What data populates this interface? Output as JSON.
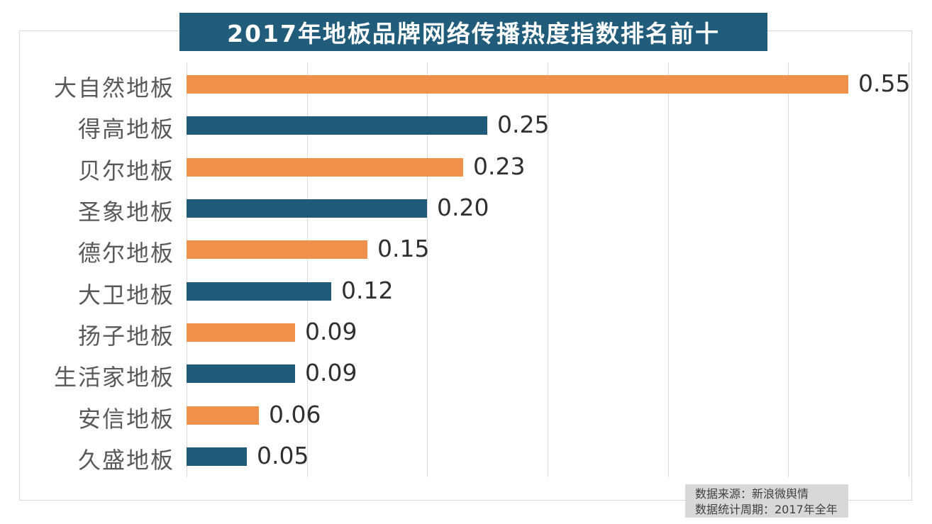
{
  "colors": {
    "background": "#FFFFFF",
    "banner_bg": "#215C7B",
    "banner_text": "#FFFFFF",
    "bar_orange": "#F0914B",
    "bar_blue": "#1F5B79",
    "grid_line": "#D9D9D9",
    "frame_border": "#D9D9D9",
    "category_label": "#595959",
    "value_label": "#303030",
    "note_bg": "#D8D8D8",
    "note_text": "#3F3F3F"
  },
  "source_note": {
    "line1": "数据来源：新浪微舆情",
    "line2": "数据统计周期：2017年全年"
  },
  "chart_data": {
    "type": "bar",
    "orientation": "horizontal",
    "title": "2017年地板品牌网络传播热度指数排名前十",
    "categories": [
      "大自然地板",
      "得高地板",
      "贝尔地板",
      "圣象地板",
      "德尔地板",
      "大卫地板",
      "扬子地板",
      "生活家地板",
      "安信地板",
      "久盛地板"
    ],
    "values": [
      0.55,
      0.25,
      0.23,
      0.2,
      0.15,
      0.12,
      0.09,
      0.09,
      0.06,
      0.05
    ],
    "value_labels": [
      "0.55",
      "0.25",
      "0.23",
      "0.20",
      "0.15",
      "0.12",
      "0.09",
      "0.09",
      "0.06",
      "0.05"
    ],
    "bar_colors": [
      "#F0914B",
      "#1F5B79",
      "#F0914B",
      "#1F5B79",
      "#F0914B",
      "#1F5B79",
      "#F0914B",
      "#1F5B79",
      "#F0914B",
      "#1F5B79"
    ],
    "xlim": [
      0,
      0.6
    ],
    "x_gridline_interval": 0.1,
    "gridlines": "vertical",
    "legend": "none",
    "value_label_position": "outside-end",
    "sort_order": "descending"
  }
}
